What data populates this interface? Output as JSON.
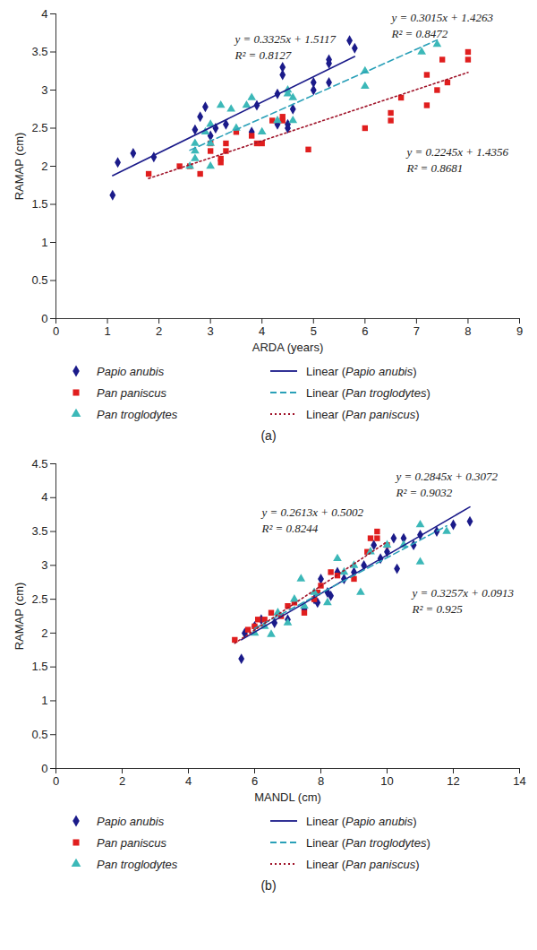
{
  "chart_data": [
    {
      "type": "scatter",
      "title": "(a)",
      "x_label": "ARDA (years)",
      "y_label": "RAMAP (cm)",
      "xlim": [
        0,
        9
      ],
      "ylim": [
        0,
        4
      ],
      "xticks": [
        0,
        1,
        2,
        3,
        4,
        5,
        6,
        7,
        8,
        9
      ],
      "yticks": [
        0,
        0.5,
        1,
        1.5,
        2,
        2.5,
        3,
        3.5,
        4
      ],
      "grid": false,
      "series": [
        {
          "name": "Papio anubis",
          "color": "#1b1b8a",
          "marker": "diamond",
          "x": [
            1.1,
            1.2,
            1.5,
            1.9,
            2.7,
            2.8,
            2.9,
            3.0,
            3.1,
            3.3,
            3.8,
            3.9,
            4.3,
            4.3,
            4.4,
            4.4,
            4.5,
            4.5,
            4.6,
            5.0,
            5.0,
            5.3,
            5.3,
            5.3,
            5.7,
            5.8
          ],
          "values": [
            1.62,
            2.05,
            2.17,
            2.12,
            2.48,
            2.65,
            2.78,
            2.4,
            2.5,
            2.55,
            2.45,
            2.8,
            2.55,
            2.95,
            3.3,
            3.2,
            2.55,
            2.5,
            2.75,
            3.0,
            3.1,
            3.35,
            3.4,
            3.1,
            3.65,
            3.55
          ]
        },
        {
          "name": "Pan paniscus",
          "color": "#e01e1e",
          "marker": "square",
          "x": [
            1.8,
            2.4,
            2.6,
            2.8,
            3.0,
            3.0,
            3.2,
            3.2,
            3.3,
            3.3,
            3.5,
            3.8,
            3.9,
            4.0,
            4.2,
            4.4,
            4.4,
            4.9,
            6.0,
            6.5,
            6.5,
            6.7,
            7.2,
            7.2,
            7.4,
            7.5,
            7.6,
            8.0,
            8.0
          ],
          "values": [
            1.9,
            2.0,
            2.0,
            1.9,
            2.2,
            2.3,
            2.1,
            2.05,
            2.2,
            2.3,
            2.45,
            2.4,
            2.3,
            2.3,
            2.6,
            2.6,
            2.65,
            2.22,
            2.5,
            2.6,
            2.7,
            2.9,
            2.8,
            3.2,
            3.0,
            3.4,
            3.1,
            3.5,
            3.4
          ]
        },
        {
          "name": "Pan troglodytes",
          "color": "#3cb8b8",
          "marker": "triangle",
          "x": [
            2.6,
            2.7,
            2.7,
            2.7,
            2.9,
            3.0,
            3.0,
            3.0,
            3.2,
            3.4,
            3.5,
            3.7,
            3.8,
            4.0,
            4.3,
            4.5,
            4.5,
            4.6,
            4.6,
            6.0,
            6.0,
            7.1,
            7.4
          ],
          "values": [
            2.0,
            2.1,
            2.2,
            2.3,
            2.45,
            2.3,
            2.55,
            2.0,
            2.8,
            2.75,
            2.5,
            2.8,
            2.9,
            2.45,
            2.6,
            2.95,
            3.0,
            2.6,
            2.9,
            3.25,
            3.05,
            3.5,
            3.6
          ]
        }
      ],
      "trendlines": [
        {
          "name": "Linear (Papio anubis)",
          "series": "Papio anubis",
          "color": "#1b1b8a",
          "line_style": "solid",
          "slope": 0.3325,
          "intercept": 1.5117,
          "equation": "y = 0.3325x + 1.5117",
          "r2_label": "R² = 0.8127"
        },
        {
          "name": "Linear (Pan troglodytes)",
          "series": "Pan troglodytes",
          "color": "#2aa0b8",
          "line_style": "dashed",
          "slope": 0.3015,
          "intercept": 1.4263,
          "equation": "y = 0.3015x + 1.4263",
          "r2_label": "R² = 0.8472"
        },
        {
          "name": "Linear (Pan paniscus)",
          "series": "Pan paniscus",
          "color": "#a0142a",
          "line_style": "dotted",
          "slope": 0.2245,
          "intercept": 1.4356,
          "equation": "y = 0.2245x + 1.4356",
          "r2_label": "R² = 0.8681"
        }
      ]
    },
    {
      "type": "scatter",
      "title": "(b)",
      "x_label": "MANDL (cm)",
      "y_label": "RAMAP (cm)",
      "xlim": [
        0,
        14
      ],
      "ylim": [
        0,
        4.5
      ],
      "xticks": [
        0,
        2,
        4,
        6,
        8,
        10,
        12,
        14
      ],
      "yticks": [
        0,
        0.5,
        1,
        1.5,
        2,
        2.5,
        3,
        3.5,
        4,
        4.5
      ],
      "grid": false,
      "series": [
        {
          "name": "Papio anubis",
          "color": "#1b1b8a",
          "marker": "diamond",
          "x": [
            5.6,
            5.7,
            6.0,
            6.2,
            6.6,
            7.0,
            7.5,
            7.8,
            7.9,
            8.0,
            8.2,
            8.3,
            8.5,
            8.7,
            9.0,
            9.3,
            9.6,
            9.8,
            10.0,
            10.2,
            10.3,
            10.5,
            10.8,
            11.0,
            11.5,
            12.0,
            12.5
          ],
          "values": [
            1.62,
            2.0,
            2.1,
            2.2,
            2.15,
            2.2,
            2.35,
            2.5,
            2.45,
            2.8,
            2.6,
            2.55,
            2.9,
            2.8,
            2.9,
            3.0,
            3.3,
            3.1,
            3.2,
            3.4,
            2.95,
            3.4,
            3.3,
            3.45,
            3.5,
            3.6,
            3.65
          ]
        },
        {
          "name": "Pan paniscus",
          "color": "#e01e1e",
          "marker": "square",
          "x": [
            5.4,
            5.8,
            6.0,
            6.1,
            6.3,
            6.5,
            6.8,
            7.0,
            7.2,
            7.5,
            7.8,
            7.9,
            8.0,
            8.3,
            8.5,
            9.0,
            9.4,
            9.5,
            9.7,
            9.7,
            10.0
          ],
          "values": [
            1.9,
            2.05,
            2.1,
            2.2,
            2.2,
            2.3,
            2.25,
            2.4,
            2.45,
            2.3,
            2.5,
            2.6,
            2.7,
            2.9,
            2.85,
            2.8,
            3.2,
            3.4,
            3.5,
            3.4,
            3.3
          ]
        },
        {
          "name": "Pan troglodytes",
          "color": "#3cb8b8",
          "marker": "triangle",
          "x": [
            6.0,
            6.3,
            6.5,
            6.7,
            7.0,
            7.2,
            7.4,
            7.5,
            7.8,
            8.2,
            8.5,
            8.7,
            9.0,
            9.2,
            9.5,
            10.0,
            10.5,
            11.0,
            11.0,
            11.8
          ],
          "values": [
            2.0,
            2.1,
            1.98,
            2.3,
            2.15,
            2.5,
            2.8,
            2.4,
            2.6,
            2.45,
            3.1,
            2.9,
            3.0,
            2.6,
            3.2,
            3.3,
            3.3,
            3.6,
            3.05,
            3.5
          ]
        }
      ],
      "trendlines": [
        {
          "name": "Linear (Papio anubis)",
          "series": "Papio anubis",
          "color": "#1b1b8a",
          "line_style": "solid",
          "slope": 0.2845,
          "intercept": 0.3072,
          "equation": "y = 0.2845x + 0.3072",
          "r2_label": "R² = 0.9032"
        },
        {
          "name": "Linear (Pan troglodytes)",
          "series": "Pan troglodytes",
          "color": "#2aa0b8",
          "line_style": "dashed",
          "slope": 0.2613,
          "intercept": 0.5002,
          "equation": "y = 0.2613x + 0.5002",
          "r2_label": "R² = 0.8244"
        },
        {
          "name": "Linear (Pan paniscus)",
          "series": "Pan paniscus",
          "color": "#a0142a",
          "line_style": "dotted",
          "slope": 0.3257,
          "intercept": 0.0913,
          "equation": "y = 0.3257x + 0.0913",
          "r2_label": "R² = 0.925"
        }
      ]
    }
  ]
}
